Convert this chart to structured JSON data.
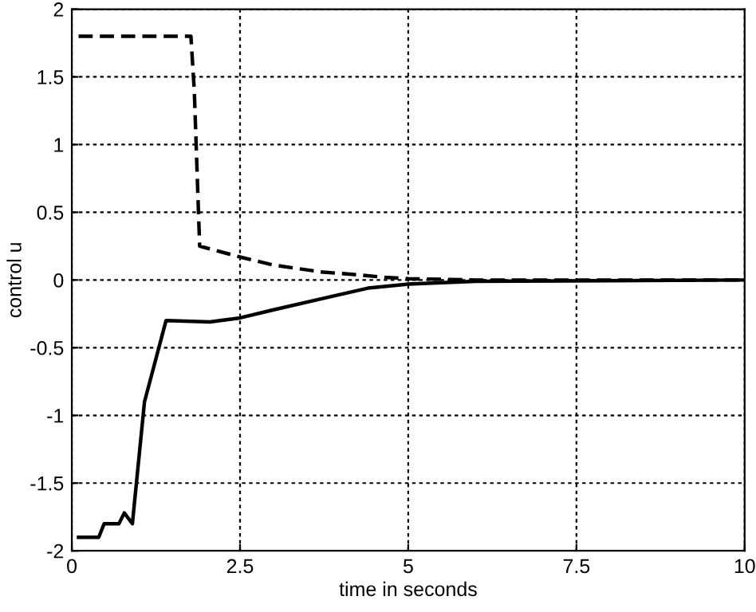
{
  "chart_data": {
    "type": "line",
    "xlabel": "time in seconds",
    "ylabel": "control u",
    "xlim": [
      0,
      10
    ],
    "ylim": [
      -2,
      2
    ],
    "xticks": [
      0,
      2.5,
      5,
      7.5,
      10
    ],
    "yticks": [
      -2,
      -1.5,
      -1,
      -0.5,
      0,
      0.5,
      1,
      1.5,
      2
    ],
    "grid": true,
    "marker": "none",
    "series": [
      {
        "color": "#000000",
        "line_style": "dashed",
        "x": [
          0.1,
          1.77,
          1.82,
          1.9,
          2.5,
          3.0,
          3.7,
          4.2,
          4.65,
          5.0,
          6.0,
          10
        ],
        "values": [
          1.8,
          1.8,
          1.4,
          0.25,
          0.17,
          0.11,
          0.06,
          0.04,
          0.02,
          0.01,
          0,
          0
        ]
      },
      {
        "color": "#000000",
        "line_style": "solid",
        "x": [
          0.1,
          0.4,
          0.48,
          0.7,
          0.78,
          0.9,
          1.08,
          1.4,
          2.05,
          2.5,
          3.0,
          3.7,
          4.4,
          5.0,
          6.0,
          10
        ],
        "values": [
          -1.9,
          -1.9,
          -1.8,
          -1.8,
          -1.72,
          -1.8,
          -0.9,
          -0.3,
          -0.31,
          -0.28,
          -0.22,
          -0.14,
          -0.06,
          -0.03,
          -0.01,
          0
        ]
      }
    ]
  }
}
